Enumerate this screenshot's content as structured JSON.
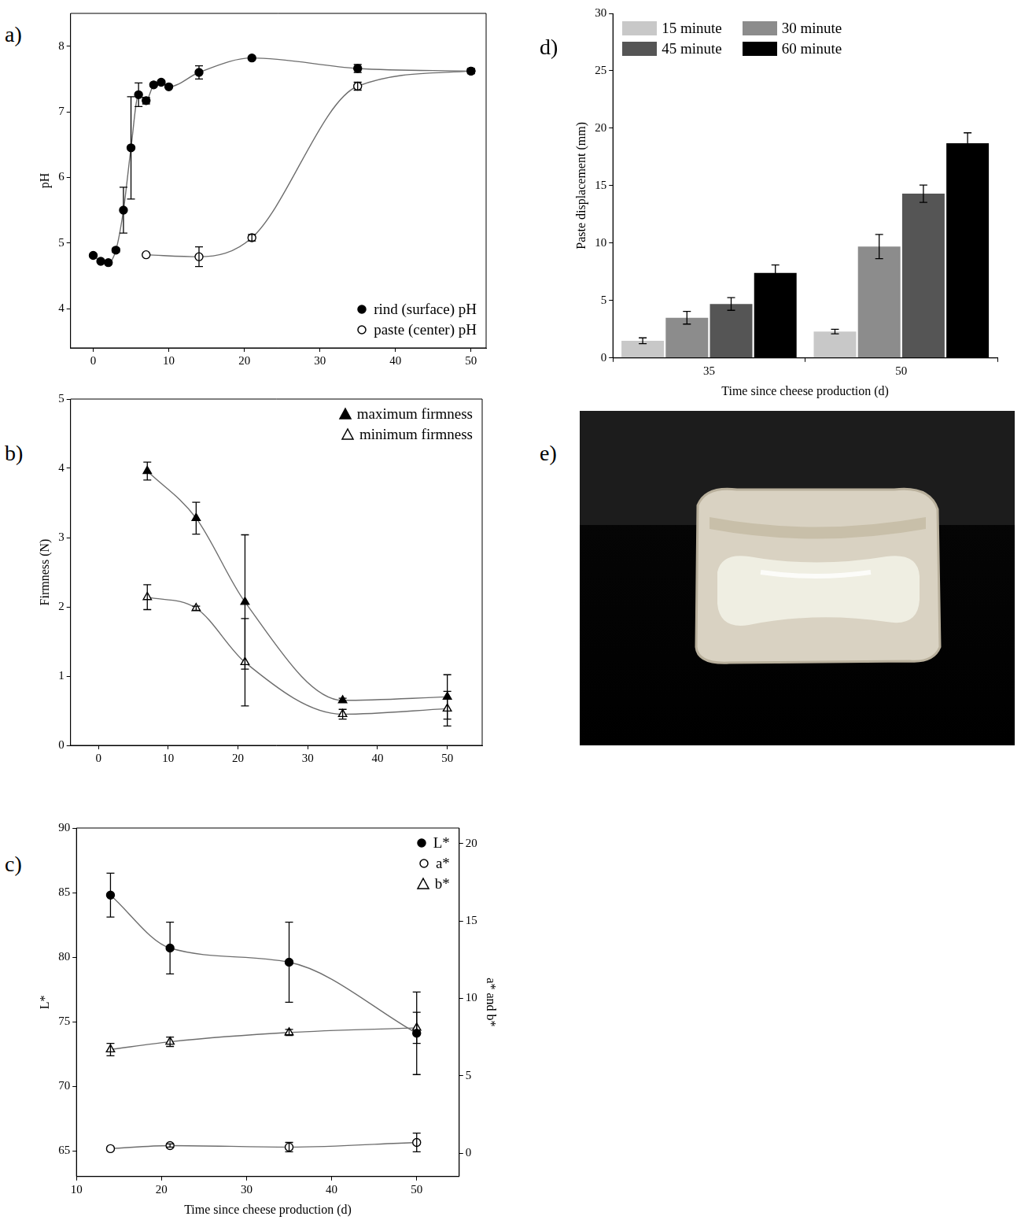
{
  "chart_data": [
    {
      "type": "scatter",
      "letter": "a)",
      "y_label": "pH",
      "xlim": [
        -3,
        52
      ],
      "xticks": [
        0,
        10,
        20,
        30,
        40,
        50
      ],
      "ylim": [
        3.4,
        8.5
      ],
      "yticks": [
        4,
        5,
        6,
        7,
        8
      ],
      "grid": false,
      "legend": "lower right",
      "series": [
        {
          "name": "rind (surface) pH",
          "color": "#000000",
          "marker": "circle",
          "line_style": "solid",
          "x": [
            0,
            1,
            2,
            3,
            4,
            5,
            6,
            7,
            8,
            9,
            10,
            14,
            21,
            35,
            50
          ],
          "values": [
            4.81,
            4.72,
            4.7,
            4.89,
            5.5,
            6.45,
            7.26,
            7.17,
            7.41,
            7.45,
            7.38,
            7.6,
            7.82,
            7.66,
            7.62
          ],
          "errors": [
            null,
            null,
            null,
            0.03,
            0.35,
            0.78,
            0.18,
            0.05,
            null,
            null,
            null,
            0.1,
            null,
            0.06,
            0.04
          ]
        },
        {
          "name": "paste (center) pH",
          "color": "#000000",
          "marker": "circle-open",
          "line_style": "solid",
          "x": [
            7,
            14,
            21,
            35,
            50
          ],
          "values": [
            4.82,
            4.79,
            5.08,
            7.39,
            7.62
          ],
          "errors": [
            null,
            0.15,
            0.05,
            0.06,
            null
          ]
        }
      ]
    },
    {
      "type": "scatter",
      "letter": "b)",
      "y_label": "Firmness (N)",
      "xlim": [
        -4,
        55
      ],
      "xticks": [
        0,
        10,
        20,
        30,
        40,
        50
      ],
      "ylim": [
        0,
        5
      ],
      "yticks": [
        0,
        1,
        2,
        3,
        4,
        5
      ],
      "grid": false,
      "legend": "upper right",
      "series": [
        {
          "name": "maximum firmness",
          "color": "#000000",
          "marker": "triangle",
          "line_style": "solid",
          "x": [
            7,
            14,
            21,
            35,
            50
          ],
          "values": [
            3.96,
            3.28,
            2.07,
            0.65,
            0.7
          ],
          "errors": [
            0.13,
            0.23,
            0.97,
            0.03,
            0.32
          ]
        },
        {
          "name": "minimum firmness",
          "color": "#000000",
          "marker": "triangle-open",
          "line_style": "solid",
          "x": [
            7,
            14,
            21,
            35,
            50
          ],
          "values": [
            2.14,
            1.98,
            1.2,
            0.45,
            0.53
          ],
          "errors": [
            0.18,
            0.03,
            0.63,
            0.07,
            0.25
          ]
        }
      ]
    },
    {
      "type": "scatter",
      "letter": "c)",
      "x_label": "Time since cheese production (d)",
      "y_label": "L*",
      "y2_label": "a* and b*",
      "xlim": [
        10,
        55
      ],
      "xticks": [
        10,
        20,
        30,
        40,
        50
      ],
      "ylim": [
        63,
        90
      ],
      "yticks": [
        65,
        70,
        75,
        80,
        85,
        90
      ],
      "y2lim": [
        -1.5,
        21
      ],
      "y2ticks": [
        0,
        5,
        10,
        15,
        20
      ],
      "grid": false,
      "legend": "upper right",
      "series": [
        {
          "name": "L*",
          "color": "#000000",
          "marker": "circle",
          "line_style": "solid",
          "axis": "y",
          "x": [
            14,
            21,
            35,
            50
          ],
          "values": [
            84.8,
            80.7,
            79.6,
            74.1
          ],
          "errors": [
            1.7,
            2.0,
            3.1,
            3.2
          ]
        },
        {
          "name": "a*",
          "color": "#000000",
          "marker": "circle-open",
          "line_style": "solid",
          "axis": "y2",
          "x": [
            14,
            21,
            35,
            50
          ],
          "values": [
            0.3,
            0.5,
            0.4,
            0.7
          ],
          "errors": [
            null,
            0.1,
            0.3,
            0.6
          ]
        },
        {
          "name": "b*",
          "color": "#000000",
          "marker": "triangle-open",
          "line_style": "solid",
          "axis": "y2",
          "x": [
            14,
            21,
            35,
            50
          ],
          "values": [
            6.7,
            7.2,
            7.8,
            8.1
          ],
          "errors": [
            0.4,
            0.3,
            0.2,
            1.0
          ]
        }
      ]
    },
    {
      "type": "bar",
      "letter": "d)",
      "x_label": "Time since cheese production (d)",
      "y_label": "Paste displacement (mm)",
      "categories": [
        "35",
        "50"
      ],
      "ylim": [
        0,
        30
      ],
      "yticks": [
        0,
        5,
        10,
        15,
        20,
        25,
        30
      ],
      "grid": false,
      "legend": "upper left",
      "series": [
        {
          "name": "15 minute",
          "color": "#c8c8c8",
          "values": [
            1.5,
            2.3
          ],
          "errors": [
            0.25,
            0.2
          ]
        },
        {
          "name": "30 minute",
          "color": "#8c8c8c",
          "values": [
            3.5,
            9.7
          ],
          "errors": [
            0.55,
            1.05
          ]
        },
        {
          "name": "45 minute",
          "color": "#555555",
          "values": [
            4.7,
            14.3
          ],
          "errors": [
            0.55,
            0.75
          ]
        },
        {
          "name": "60 minute",
          "color": "#000000",
          "values": [
            7.4,
            18.7
          ],
          "errors": [
            0.7,
            0.9
          ]
        }
      ]
    }
  ],
  "photo": {
    "letter": "e)"
  }
}
